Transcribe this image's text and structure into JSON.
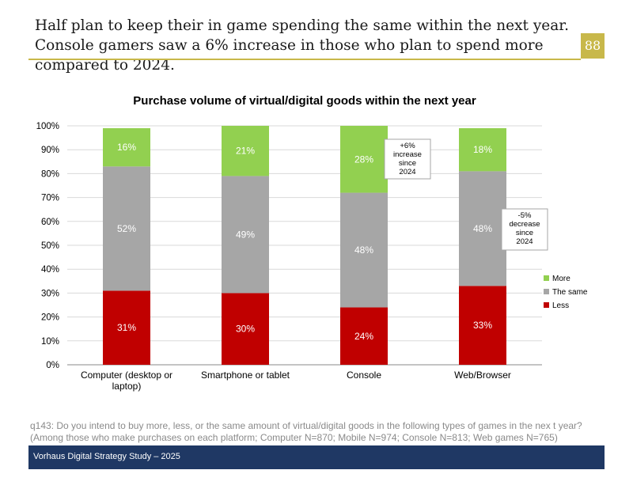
{
  "headline": "Half plan to keep their in game spending the same within the next year. Console gamers saw a 6% increase in those who plan to spend more compared to 2024.",
  "page_number": "88",
  "chart_data": {
    "type": "bar",
    "stacked": true,
    "title": "Purchase volume of virtual/digital goods within the next year",
    "categories": [
      "Computer (desktop or laptop)",
      "Smartphone or tablet",
      "Console",
      "Web/Browser"
    ],
    "series": [
      {
        "name": "Less",
        "color": "#c00000",
        "values": [
          31,
          30,
          24,
          33
        ]
      },
      {
        "name": "The same",
        "color": "#a6a6a6",
        "values": [
          52,
          49,
          48,
          48
        ]
      },
      {
        "name": "More",
        "color": "#92d050",
        "values": [
          16,
          21,
          28,
          18
        ]
      }
    ],
    "ylim": [
      0,
      100
    ],
    "yticks": [
      "0%",
      "10%",
      "20%",
      "30%",
      "40%",
      "50%",
      "60%",
      "70%",
      "80%",
      "90%",
      "100%"
    ],
    "legend_position": "right",
    "legend": [
      "More",
      "The same",
      "Less"
    ],
    "annotations": [
      {
        "category": "Console",
        "lines": [
          "+6%",
          "increase",
          "since",
          "2024"
        ]
      },
      {
        "category": "Web/Browser",
        "lines": [
          "-5%",
          "decrease",
          "since",
          "2024"
        ]
      }
    ]
  },
  "footnote": "q143: Do you intend to buy more, less, or the same amount of virtual/digital goods in the following types of games in the nex t year? (Among those who make purchases on each platform; Computer N=870; Mobile N=974; Console N=813; Web games N=765)",
  "footer": "Vorhaus Digital Strategy Study – 2025"
}
